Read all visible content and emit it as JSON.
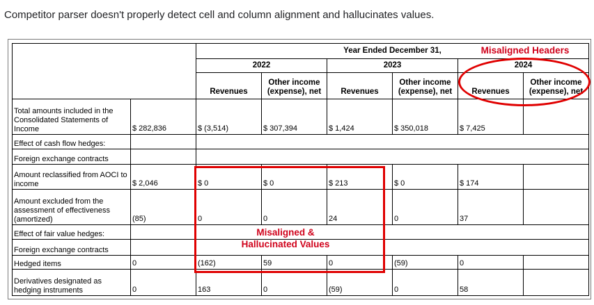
{
  "caption": "Competitor parser doesn't properly detect cell and column alignment and hallucinates values.",
  "annotations": {
    "headers": "Misaligned Headers",
    "values_line1": "Misaligned &",
    "values_line2": "Hallucinated Values",
    "color": "#e00000"
  },
  "table": {
    "period_header": "Year Ended December 31,",
    "years": [
      "2022",
      "2023",
      "2024"
    ],
    "col_headers": [
      "Revenues",
      "Other income (expense), net",
      "Revenues",
      "Other income (expense), net",
      "Revenues",
      "Other income (expense), net"
    ],
    "rows": [
      {
        "label": "Total amounts included in the Consolidated Statements of Income",
        "total": "$ 282,836",
        "values": [
          "$ (3,514)",
          "$ 307,394",
          "$ 1,424",
          "$ 350,018",
          "$ 7,425",
          ""
        ]
      },
      {
        "label": "Effect of cash flow hedges:",
        "total": "",
        "values": []
      },
      {
        "label": "Foreign exchange contracts",
        "total": "",
        "values": []
      },
      {
        "label": "Amount reclassified from AOCI to income",
        "total": "$ 2,046",
        "values": [
          "$ 0",
          "$ 0",
          "$ 213",
          "$ 0",
          "$ 174",
          ""
        ]
      },
      {
        "label": "Amount excluded from the assessment of effectiveness (amortized)",
        "total": "(85)",
        "values": [
          "0",
          "0",
          "24",
          "0",
          "37",
          ""
        ]
      },
      {
        "label": "Effect of fair value hedges:",
        "total": "",
        "values": []
      },
      {
        "label": "Foreign exchange contracts",
        "total": "",
        "values": []
      },
      {
        "label": "Hedged items",
        "total": "0",
        "values": [
          "(162)",
          "59",
          "0",
          "(59)",
          "0",
          ""
        ]
      },
      {
        "label": "Derivatives designated as hedging instruments",
        "total": "0",
        "values": [
          "163",
          "0",
          "(59)",
          "0",
          "58",
          ""
        ]
      }
    ]
  }
}
